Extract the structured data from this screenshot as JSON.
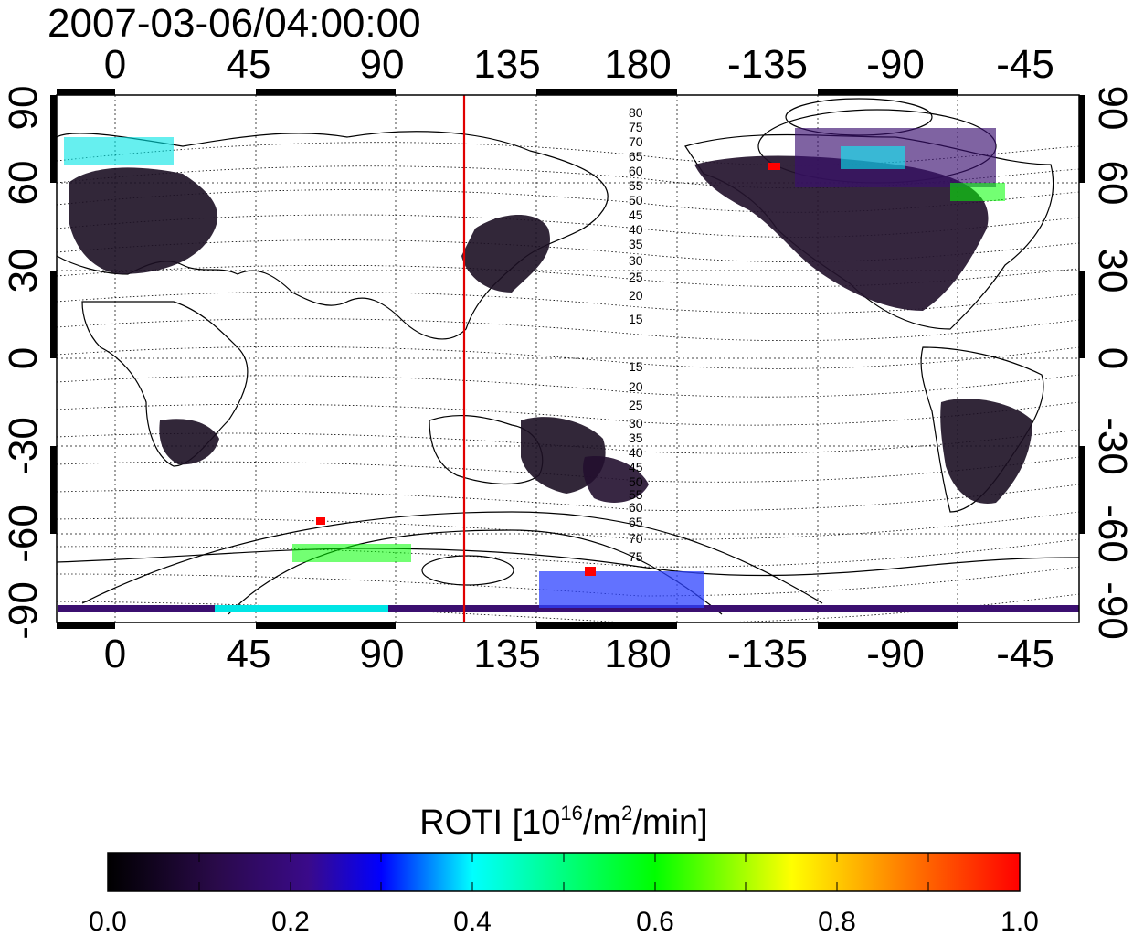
{
  "timestamp": "2007-03-06/04:00:00",
  "map": {
    "top_lon_labels": [
      "0",
      "45",
      "90",
      "135",
      "180",
      "-135",
      "-90",
      "-45"
    ],
    "bottom_lon_labels": [
      "0",
      "45",
      "90",
      "135",
      "180",
      "-135",
      "-90",
      "-45"
    ],
    "left_lat_labels": [
      "90",
      "60",
      "30",
      "0",
      "-30",
      "-60",
      "-90"
    ],
    "right_lat_labels": [
      "90",
      "60",
      "30",
      "0",
      "-30",
      "-60",
      "-90"
    ],
    "contour_labels_north": [
      "80",
      "75",
      "70",
      "65",
      "60",
      "55",
      "50",
      "45",
      "40",
      "35",
      "30",
      "25",
      "20",
      "15"
    ],
    "contour_labels_south": [
      "15",
      "20",
      "25",
      "30",
      "35",
      "40",
      "45",
      "50",
      "55",
      "60",
      "65",
      "70",
      "75"
    ],
    "terminator_longitude": 120
  },
  "colorbar": {
    "title_prefix": "ROTI  [10",
    "title_sup1": "16",
    "title_mid": "/m",
    "title_sup2": "2",
    "title_suffix": "/min]",
    "tick_labels": [
      "0.0",
      "0.2",
      "0.4",
      "0.6",
      "0.8",
      "1.0"
    ],
    "min": 0.0,
    "max": 1.0,
    "stops": [
      "#000000",
      "#3b0f70",
      "#0000ff",
      "#00ffff",
      "#00ff00",
      "#ffff00",
      "#ff0000"
    ]
  }
}
